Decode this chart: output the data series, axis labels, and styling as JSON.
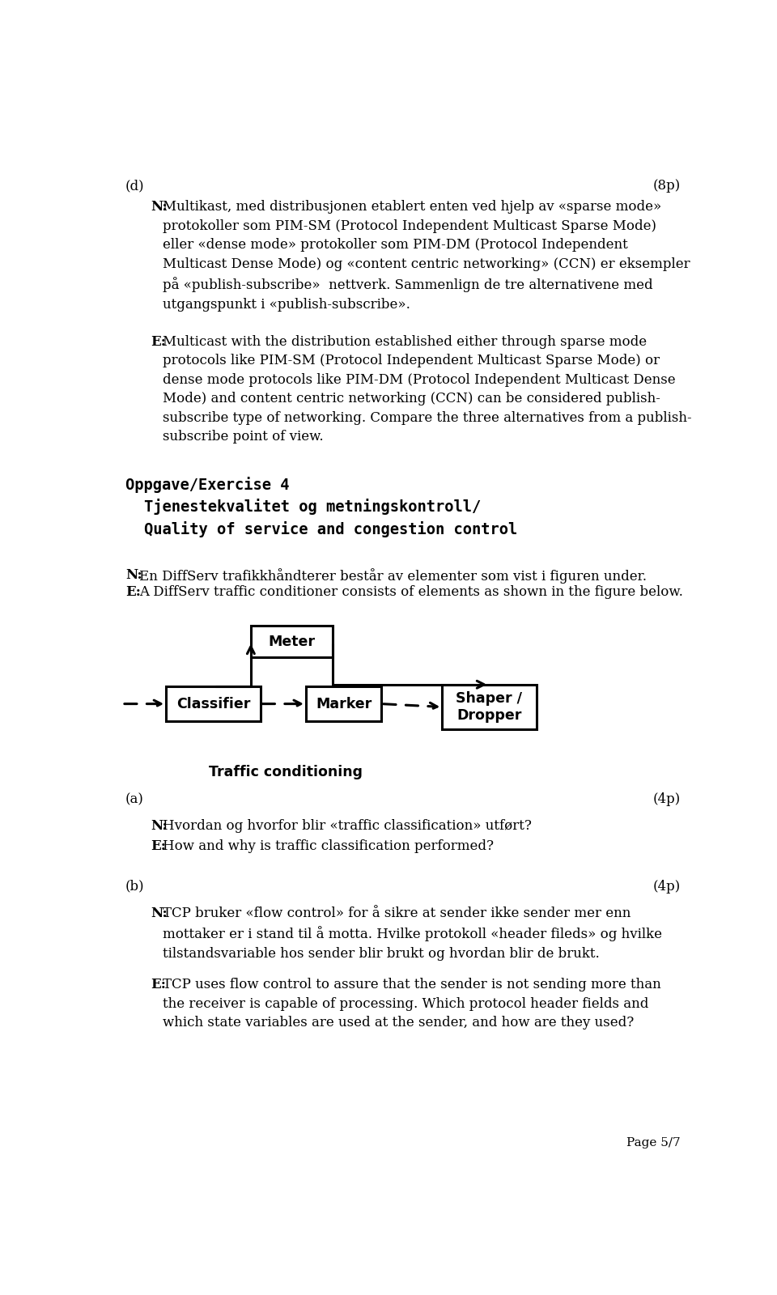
{
  "background_color": "#ffffff",
  "page_label": "Page 5/7",
  "section_d_label": "(d)",
  "section_d_points": "(8p)",
  "n_norwegian": "Multikast, med distribusjonen etablert enten ved hjelp av «sparse mode»\nprotokoller som PIM-SM (Protocol Independent Multicast Sparse Mode)\neller «dense mode» protokoller som PIM-DM (Protocol Independent\nMulticast Dense Mode) og «content centric networking» (CCN) er eksempler\npå «publish-subscribe»  nettverk. Sammenlign de tre alternativene med\nutgangspunkt i «publish-subscribe».",
  "e_english_d": "Multicast with the distribution established either through sparse mode\nprotocols like PIM-SM (Protocol Independent Multicast Sparse Mode) or\ndense mode protocols like PIM-DM (Protocol Independent Multicast Dense\nMode) and content centric networking (CCN) can be considered publish-\nsubscribe type of networking. Compare the three alternatives from a publish-\nsubscribe point of view.",
  "exercise4_line1": "Oppgave/Exercise 4",
  "exercise4_line2": "    Tjenestekvalitet og metningskontroll/",
  "exercise4_line3": "    Quality of service and congestion control",
  "n_diffserv_no": "En DiffServ trafikkhåndterer består av elementer som vist i figuren under.",
  "e_diffserv_en": "A DiffServ traffic conditioner consists of elements as shown in the figure below.",
  "diagram_label": "Traffic conditioning",
  "section_a_label": "(a)",
  "section_a_points": "(4p)",
  "section_a_n": "Hvordan og hvorfor blir «traffic classification» utført?",
  "section_a_e": "How and why is traffic classification performed?",
  "section_b_label": "(b)",
  "section_b_points": "(4p)",
  "section_b_n": "TCP bruker «flow control» for å sikre at sender ikke sender mer enn\nmottaker er i stand til å motta. Hvilke protokoll «header fileds» og hvilke\ntilstandsvariable hos sender blir brukt og hvordan blir de brukt.",
  "section_b_e": "TCP uses flow control to assure that the sender is not sending more than\nthe receiver is capable of processing. Which protocol header fields and\nwhich state variables are used at the sender, and how are they used?"
}
